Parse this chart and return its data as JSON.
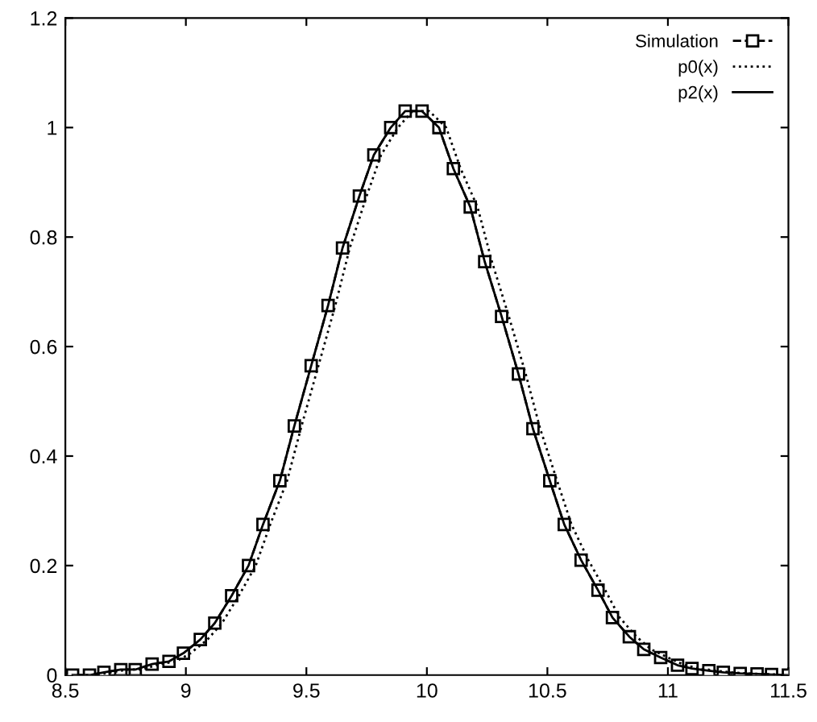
{
  "chart_data": {
    "type": "line",
    "x": [
      8.53,
      8.6,
      8.66,
      8.73,
      8.79,
      8.86,
      8.93,
      8.99,
      9.06,
      9.12,
      9.19,
      9.26,
      9.32,
      9.39,
      9.45,
      9.52,
      9.59,
      9.65,
      9.72,
      9.78,
      9.85,
      9.91,
      9.98,
      10.05,
      10.11,
      10.18,
      10.24,
      10.31,
      10.38,
      10.44,
      10.51,
      10.57,
      10.64,
      10.71,
      10.77,
      10.84,
      10.9,
      10.97,
      11.04,
      11.1,
      11.17,
      11.23,
      11.3,
      11.37,
      11.43,
      11.5
    ],
    "series": [
      {
        "name": "Simulation",
        "color": "#000000",
        "marker": "square",
        "line_style": "dashed",
        "values": [
          0.0,
          0.0,
          0.005,
          0.01,
          0.01,
          0.02,
          0.025,
          0.04,
          0.065,
          0.095,
          0.145,
          0.2,
          0.275,
          0.355,
          0.455,
          0.565,
          0.675,
          0.78,
          0.875,
          0.95,
          1.0,
          1.03,
          1.03,
          1.0,
          0.925,
          0.855,
          0.755,
          0.655,
          0.55,
          0.45,
          0.355,
          0.275,
          0.21,
          0.155,
          0.105,
          0.07,
          0.047,
          0.032,
          0.018,
          0.012,
          0.008,
          0.005,
          0.003,
          0.002,
          0.001,
          0.0
        ]
      },
      {
        "name": "p0(x)",
        "color": "#000000",
        "marker": "none",
        "line_style": "dotted",
        "x": [
          8.56,
          8.63,
          8.69,
          8.76,
          8.82,
          8.89,
          8.96,
          9.02,
          9.09,
          9.15,
          9.22,
          9.29,
          9.35,
          9.42,
          9.48,
          9.55,
          9.62,
          9.68,
          9.75,
          9.81,
          9.88,
          9.94,
          10.01,
          10.08,
          10.14,
          10.21,
          10.27,
          10.34,
          10.41,
          10.47,
          10.54,
          10.6,
          10.67,
          10.74,
          10.8,
          10.87,
          10.93,
          11.0,
          11.07,
          11.13,
          11.2,
          11.26,
          11.33,
          11.4,
          11.46
        ],
        "values": [
          0.0,
          0.0,
          0.005,
          0.01,
          0.01,
          0.02,
          0.025,
          0.04,
          0.065,
          0.095,
          0.145,
          0.2,
          0.275,
          0.355,
          0.455,
          0.565,
          0.675,
          0.78,
          0.875,
          0.95,
          1.0,
          1.03,
          1.03,
          1.0,
          0.925,
          0.855,
          0.755,
          0.655,
          0.55,
          0.45,
          0.355,
          0.275,
          0.21,
          0.155,
          0.105,
          0.07,
          0.047,
          0.032,
          0.018,
          0.012,
          0.008,
          0.005,
          0.003,
          0.002,
          0.001
        ]
      },
      {
        "name": "p2(x)",
        "color": "#000000",
        "marker": "none",
        "line_style": "solid",
        "values": [
          0.0,
          0.0,
          0.005,
          0.01,
          0.01,
          0.02,
          0.025,
          0.04,
          0.065,
          0.095,
          0.145,
          0.2,
          0.275,
          0.355,
          0.455,
          0.565,
          0.675,
          0.78,
          0.875,
          0.95,
          1.0,
          1.03,
          1.03,
          1.0,
          0.925,
          0.855,
          0.755,
          0.655,
          0.55,
          0.45,
          0.355,
          0.275,
          0.21,
          0.155,
          0.105,
          0.07,
          0.047,
          0.032,
          0.018,
          0.012,
          0.008,
          0.005,
          0.003,
          0.002,
          0.001,
          0.0
        ]
      }
    ],
    "xlim": [
      8.5,
      11.5
    ],
    "ylim": [
      0,
      1.2
    ],
    "xticks": [
      8.5,
      9,
      9.5,
      10,
      10.5,
      11,
      11.5
    ],
    "yticks": [
      0,
      0.2,
      0.4,
      0.6,
      0.8,
      1,
      1.2
    ],
    "grid": false,
    "legend": "top right"
  }
}
